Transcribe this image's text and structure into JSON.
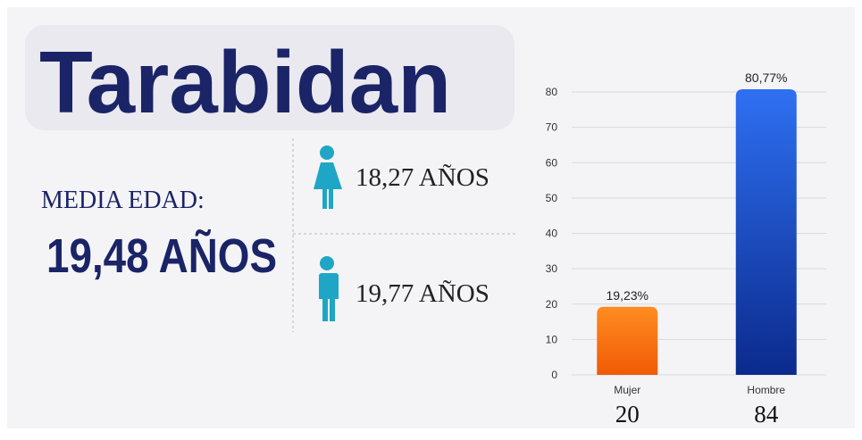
{
  "header": {
    "title": "Tarabidan"
  },
  "stats": {
    "label": "MEDIA EDAD:",
    "overall": "19,48 AÑOS",
    "female": "18,27 AÑOS",
    "male": "19,77 AÑOS"
  },
  "chart_data": {
    "type": "bar",
    "categories": [
      "Mujer",
      "Hombre"
    ],
    "values": [
      19.23,
      80.77
    ],
    "value_labels": [
      "19,23%",
      "80,77%"
    ],
    "counts": [
      20,
      84
    ],
    "colors": [
      [
        "#ff8c22",
        "#f05a05"
      ],
      [
        "#2f70f2",
        "#0b2a8c"
      ]
    ],
    "ylim": [
      0,
      80
    ],
    "yticks": [
      0,
      10,
      20,
      30,
      40,
      50,
      60,
      70,
      80
    ],
    "grid": true
  }
}
